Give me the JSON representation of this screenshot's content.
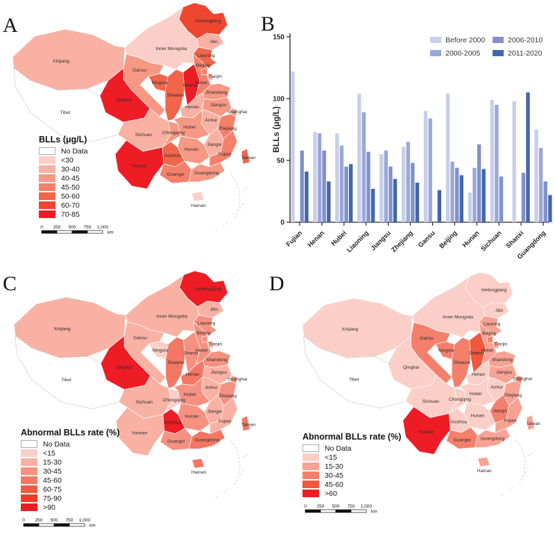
{
  "panels": {
    "a": {
      "letter": "A",
      "legend_title": "BLLs (μg/L)",
      "legend": [
        {
          "label": "No Data",
          "color": "#ffffff"
        },
        {
          "label": "<30",
          "color": "#fbcfc7"
        },
        {
          "label": "30-40",
          "color": "#f8b1a3"
        },
        {
          "label": "40-45",
          "color": "#f69884"
        },
        {
          "label": "45-50",
          "color": "#f4806b"
        },
        {
          "label": "50-60",
          "color": "#f1654a"
        },
        {
          "label": "60-70",
          "color": "#ef4630"
        },
        {
          "label": "70-85",
          "color": "#ee1c24"
        }
      ],
      "scalebar": {
        "labels": [
          "0",
          "250",
          "500",
          "750",
          "1,000"
        ],
        "unit": "km"
      }
    },
    "b": {
      "letter": "B",
      "ylabel": "BLLs (μg/L)"
    },
    "c": {
      "letter": "C",
      "legend_title": "Abnormal BLLs rate (%)",
      "legend": [
        {
          "label": "No Data",
          "color": "#ffffff"
        },
        {
          "label": "<15",
          "color": "#fbcfc7"
        },
        {
          "label": "15-30",
          "color": "#f8b1a3"
        },
        {
          "label": "30-45",
          "color": "#f69181"
        },
        {
          "label": "45-60",
          "color": "#f37763"
        },
        {
          "label": "60-75",
          "color": "#f15a40"
        },
        {
          "label": "75-90",
          "color": "#ef3a28"
        },
        {
          "label": ">90",
          "color": "#ee1c24"
        }
      ],
      "scalebar": {
        "labels": [
          "0",
          "250",
          "500",
          "750",
          "1,000"
        ],
        "unit": "km"
      }
    },
    "d": {
      "letter": "D",
      "legend_title": "Abnormal BLLs rate (%)",
      "legend": [
        {
          "label": "No Data",
          "color": "#ffffff"
        },
        {
          "label": "<15",
          "color": "#fbcfc7"
        },
        {
          "label": "15-30",
          "color": "#f8a293"
        },
        {
          "label": "30-45",
          "color": "#f4806b"
        },
        {
          "label": "45-60",
          "color": "#f1573c"
        },
        {
          "label": ">60",
          "color": "#ee1c24"
        }
      ],
      "scalebar": {
        "labels": [
          "0",
          "250",
          "500",
          "750",
          "1,000"
        ],
        "unit": "km"
      }
    }
  },
  "chart_data": {
    "type": "bar",
    "title": "",
    "ylabel": "BLLs (μg/L)",
    "ylim": [
      0,
      150
    ],
    "yticks": [
      0,
      50,
      100,
      150
    ],
    "grid": false,
    "legend_position": "top-right",
    "categories": [
      "Fujian",
      "Henan",
      "Hubei",
      "Liaoning",
      "Jiangsu",
      "Zhejiang",
      "Gansu",
      "Beijing",
      "Hunan",
      "Sichuan",
      "Shanxi",
      "Guangdong"
    ],
    "series": [
      {
        "name": "Before 2000",
        "color": "#c9cfea",
        "values": [
          122,
          73,
          72,
          104,
          55,
          61,
          90,
          104,
          24,
          99,
          98,
          75
        ]
      },
      {
        "name": "2000-2005",
        "color": "#9aa8d9",
        "values": [
          null,
          72,
          62,
          89,
          58,
          65,
          84,
          49,
          44,
          95,
          null,
          60
        ]
      },
      {
        "name": "2006-2010",
        "color": "#8091cc",
        "values": [
          58,
          58,
          45,
          57,
          45,
          48,
          null,
          44,
          63,
          37,
          40,
          33
        ]
      },
      {
        "name": "2011-2020",
        "color": "#4466b0",
        "values": [
          41,
          33,
          47,
          27,
          35,
          32,
          26,
          38,
          43,
          null,
          105,
          22
        ]
      }
    ]
  },
  "provinces": [
    {
      "name": "Xinjiang",
      "a": "30-40",
      "c": "15-30",
      "d": "<15"
    },
    {
      "name": "Tibet",
      "a": "No Data",
      "c": "No Data",
      "d": "No Data"
    },
    {
      "name": "Inner Mongolia",
      "a": "<30",
      "c": "15-30",
      "d": "<15"
    },
    {
      "name": "Heilongjiang",
      "a": "60-70",
      "c": ">90",
      "d": "<15"
    },
    {
      "name": "Jilin",
      "a": "30-40",
      "c": "15-30",
      "d": "<15"
    },
    {
      "name": "Liaoning",
      "a": "50-60",
      "c": "30-45",
      "d": "15-30"
    },
    {
      "name": "Gansu",
      "a": "40-45",
      "c": "15-30",
      "d": "30-45"
    },
    {
      "name": "Qinghai",
      "a": "70-85",
      "c": ">90",
      "d": "<15"
    },
    {
      "name": "Ningxia",
      "a": "50-60",
      "c": "<15",
      "d": "30-45"
    },
    {
      "name": "Shaanxi",
      "a": "50-60",
      "c": "45-60",
      "d": "30-45"
    },
    {
      "name": "Shanxi",
      "a": "70-85",
      "c": "30-45",
      "d": "45-60"
    },
    {
      "name": "Hebei",
      "a": "45-50",
      "c": "30-45",
      "d": "15-30"
    },
    {
      "name": "Beijing",
      "a": "45-50",
      "c": "30-45",
      "d": "30-45"
    },
    {
      "name": "Tianjin",
      "a": "30-40",
      "c": "15-30",
      "d": "15-30"
    },
    {
      "name": "Shandong",
      "a": "40-45",
      "c": "30-45",
      "d": "15-30"
    },
    {
      "name": "Henan",
      "a": "30-40",
      "c": "45-60",
      "d": "<15"
    },
    {
      "name": "Jiangsu",
      "a": "40-45",
      "c": "15-30",
      "d": "15-30"
    },
    {
      "name": "Shanghai",
      "a": "40-45",
      "c": "30-45",
      "d": "30-45"
    },
    {
      "name": "Anhui",
      "a": "30-40",
      "c": "15-30",
      "d": "<15"
    },
    {
      "name": "Hubei",
      "a": "40-45",
      "c": "30-45",
      "d": "<15"
    },
    {
      "name": "Chongqing",
      "a": "40-45",
      "c": "<15",
      "d": "<15"
    },
    {
      "name": "Sichuan",
      "a": "30-40",
      "c": "15-30",
      "d": "<15"
    },
    {
      "name": "Guizhou",
      "a": "50-60",
      "c": ">90",
      "d": "<15"
    },
    {
      "name": "Yunnan",
      "a": "70-85",
      "c": "15-30",
      "d": ">60"
    },
    {
      "name": "Hunan",
      "a": "40-45",
      "c": "30-45",
      "d": "<15"
    },
    {
      "name": "Jiangxi",
      "a": "30-40",
      "c": "15-30",
      "d": "30-45"
    },
    {
      "name": "Zhejiang",
      "a": "45-50",
      "c": "30-45",
      "d": "15-30"
    },
    {
      "name": "Fujian",
      "a": "45-50",
      "c": "15-30",
      "d": "15-30"
    },
    {
      "name": "Taiwan",
      "a": "50-60",
      "c": "45-60",
      "d": "15-30"
    },
    {
      "name": "Guangxi",
      "a": "45-50",
      "c": "30-45",
      "d": "30-45"
    },
    {
      "name": "Guangdong",
      "a": "40-45",
      "c": "45-60",
      "d": "15-30"
    },
    {
      "name": "Hainan",
      "a": "<30",
      "c": "45-60",
      "d": "15-30"
    }
  ]
}
